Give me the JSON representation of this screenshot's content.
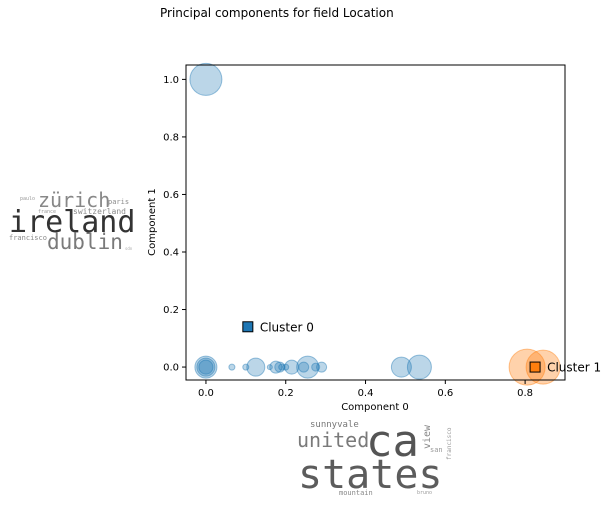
{
  "chart_data": {
    "type": "scatter",
    "title": "Principal components for field Location",
    "xlabel": "Component 0",
    "ylabel": "Component 1",
    "xlim": [
      -0.05,
      0.9
    ],
    "ylim": [
      -0.045,
      1.05
    ],
    "x_ticks": [
      "0.0",
      "0.2",
      "0.4",
      "0.6",
      "0.8"
    ],
    "x_tick_values": [
      0.0,
      0.2,
      0.4,
      0.6,
      0.8
    ],
    "y_ticks": [
      "0.0",
      "0.2",
      "0.4",
      "0.6",
      "0.8",
      "1.0"
    ],
    "y_tick_values": [
      0.0,
      0.2,
      0.4,
      0.6,
      0.8,
      1.0
    ],
    "grid": false,
    "series": [
      {
        "name": "Cluster 0",
        "color": "#1f77b4",
        "points": [
          {
            "x": 0.0,
            "y": 1.0,
            "size": 16
          },
          {
            "x": 0.0,
            "y": 0.0,
            "size": 11
          },
          {
            "x": 0.0,
            "y": 0.0,
            "size": 9
          },
          {
            "x": 0.0,
            "y": 0.0,
            "size": 7
          },
          {
            "x": 0.065,
            "y": 0.0,
            "size": 3
          },
          {
            "x": 0.1,
            "y": 0.0,
            "size": 3
          },
          {
            "x": 0.125,
            "y": 0.0,
            "size": 9
          },
          {
            "x": 0.16,
            "y": 0.0,
            "size": 2.5
          },
          {
            "x": 0.175,
            "y": 0.0,
            "size": 6
          },
          {
            "x": 0.185,
            "y": 0.0,
            "size": 5
          },
          {
            "x": 0.19,
            "y": 0.0,
            "size": 3
          },
          {
            "x": 0.2,
            "y": 0.0,
            "size": 3
          },
          {
            "x": 0.215,
            "y": 0.0,
            "size": 7
          },
          {
            "x": 0.245,
            "y": 0.0,
            "size": 5
          },
          {
            "x": 0.255,
            "y": 0.0,
            "size": 11
          },
          {
            "x": 0.275,
            "y": 0.0,
            "size": 4
          },
          {
            "x": 0.29,
            "y": 0.0,
            "size": 5
          },
          {
            "x": 0.49,
            "y": 0.0,
            "size": 10
          },
          {
            "x": 0.535,
            "y": 0.0,
            "size": 12
          }
        ]
      },
      {
        "name": "Cluster 1",
        "color": "#ff7f0e",
        "points": [
          {
            "x": 0.805,
            "y": 0.0,
            "size": 18
          },
          {
            "x": 0.845,
            "y": 0.0,
            "size": 17
          }
        ]
      }
    ],
    "cluster_labels": [
      {
        "text": "Cluster 0",
        "x": 0.105,
        "y": 0.14,
        "color": "#1f77b4"
      },
      {
        "text": "Cluster 1",
        "x": 0.825,
        "y": 0.0,
        "color": "#ff7f0e"
      }
    ],
    "wordcloud_left": [
      {
        "text": "ireland",
        "color": "#333333"
      },
      {
        "text": "zürich",
        "color": "#888888"
      },
      {
        "text": "dublin",
        "color": "#7a7a7a"
      },
      {
        "text": "switzerland",
        "color": "#8a8a8a"
      },
      {
        "text": "paris",
        "color": "#8a8a8a"
      },
      {
        "text": "paulo",
        "color": "#999999"
      },
      {
        "text": "france",
        "color": "#999999"
      },
      {
        "text": "francisco",
        "color": "#8a8a8a"
      },
      {
        "text": "sdn",
        "color": "#aaaaaa"
      }
    ],
    "wordcloud_bottom": [
      {
        "text": "ca",
        "color": "#555555"
      },
      {
        "text": "states",
        "color": "#5c5c5c"
      },
      {
        "text": "united",
        "color": "#7a7a7a"
      },
      {
        "text": "sunnyvale",
        "color": "#777777"
      },
      {
        "text": "view",
        "color": "#888888"
      },
      {
        "text": "san",
        "color": "#999999"
      },
      {
        "text": "francisco",
        "color": "#999999"
      },
      {
        "text": "mountain",
        "color": "#888888"
      },
      {
        "text": "bruno",
        "color": "#999999"
      }
    ]
  }
}
